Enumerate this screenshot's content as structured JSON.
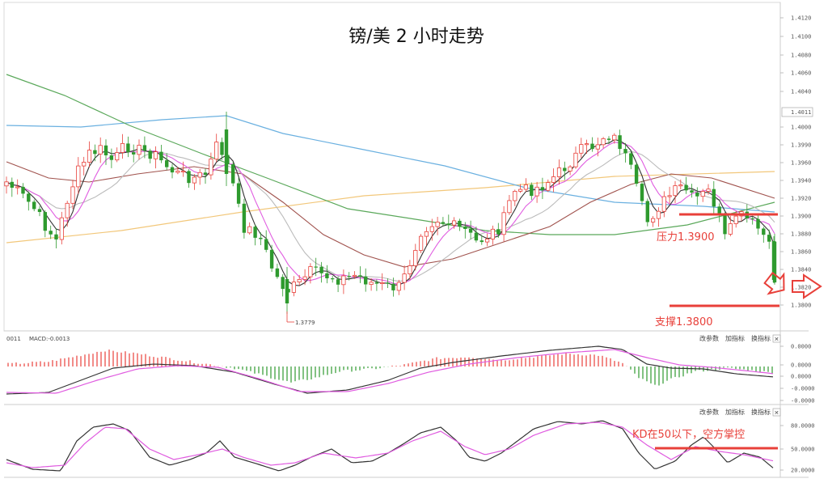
{
  "title": "镑/美 2 小时走势",
  "annotations": {
    "resistance": "压力1.3900",
    "support": "支撑1.3800",
    "kd": "KD在50以下，空方掌控",
    "low_marker": "1.3779",
    "last_price": "1.4011"
  },
  "macd_panel": {
    "header_name": "0011",
    "header_macd": "MACD:-0.0013",
    "buttons": [
      "改参数",
      "加指标",
      "换指标"
    ],
    "close": "✕"
  },
  "kd_panel": {
    "buttons": [
      "改参数",
      "加指标",
      "换指标"
    ],
    "close": "✕"
  },
  "colors": {
    "up": "#e8403a",
    "down": "#2e9a2e",
    "accent": "#e8403a",
    "ma_short": "#333333",
    "ma_pink": "#e05ce0",
    "ma_gray": "#bbbbbb",
    "ma_brown": "#a0524d",
    "ma_green": "#5aa85a",
    "ma_blue": "#6ab0e0",
    "ma_orange": "#f2c77a"
  },
  "chart_data": [
    {
      "type": "candlestick",
      "panel": "price",
      "y_ticks": [
        "1.4120",
        "1.4100",
        "1.4080",
        "1.4060",
        "1.4040",
        "1.4011",
        "1.4000",
        "1.3990",
        "1.3960",
        "1.3940",
        "1.3920",
        "1.3900",
        "1.3880",
        "1.3860",
        "1.3840",
        "1.3820",
        "1.3800"
      ],
      "ylim": [
        1.379,
        1.4125
      ],
      "levels": {
        "resistance": 1.39,
        "support": 1.38
      },
      "min_low": 1.3779
    },
    {
      "type": "bar",
      "panel": "macd",
      "y_ticks": [
        "0.0000",
        "0.0000",
        "0.0000",
        "-0.0000",
        "-0.0000"
      ]
    },
    {
      "type": "line",
      "panel": "kd",
      "y_ticks": [
        "80.0000",
        "50.0000",
        "20.0000"
      ],
      "ylim": [
        0,
        100
      ],
      "levels": {
        "threshold": 50
      }
    }
  ]
}
